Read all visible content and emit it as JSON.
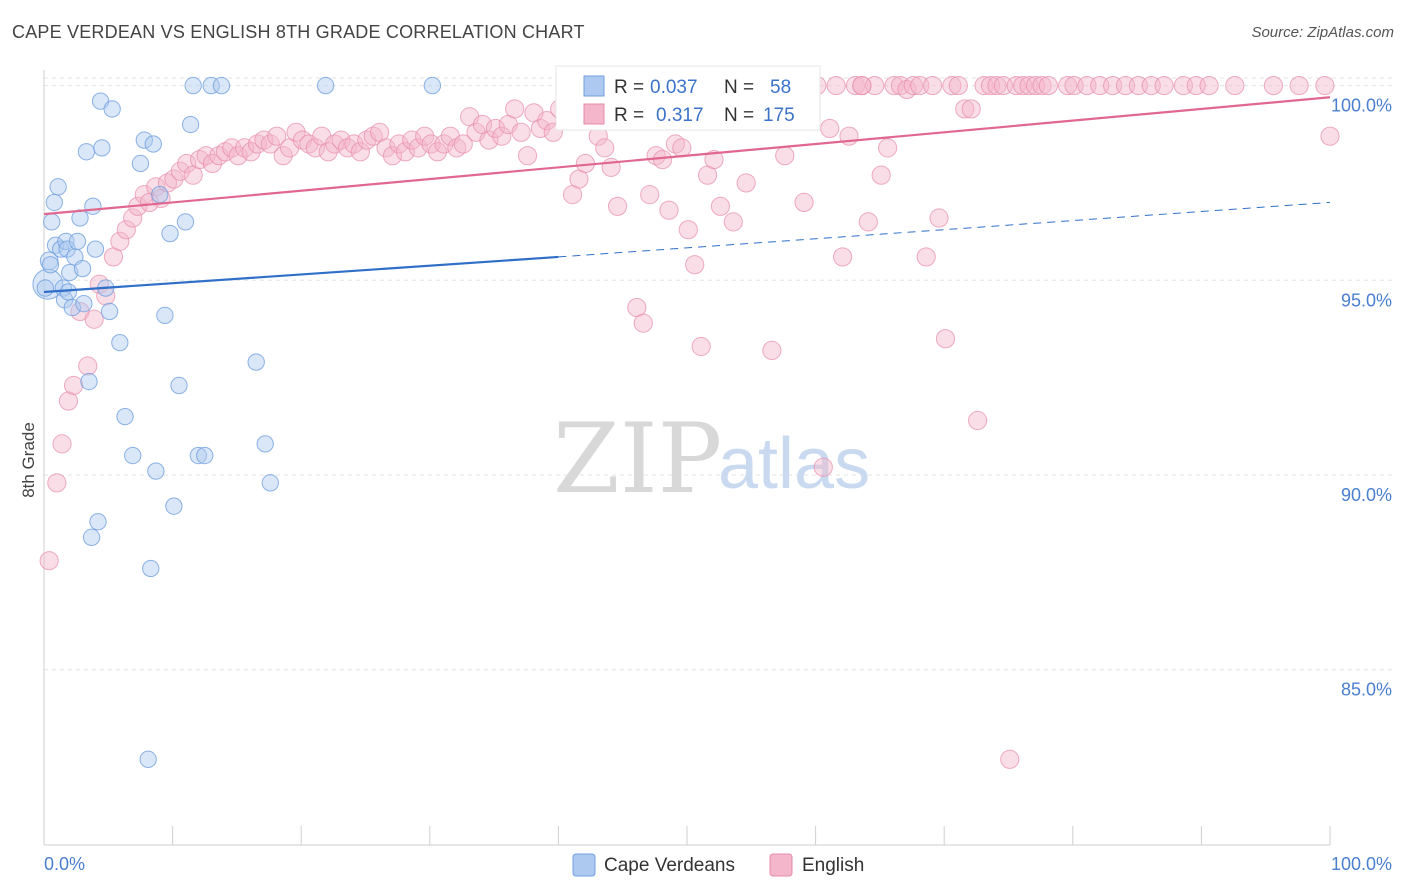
{
  "title": "CAPE VERDEAN VS ENGLISH 8TH GRADE CORRELATION CHART",
  "source": "Source: ZipAtlas.com",
  "watermark": {
    "zip": "ZIP",
    "atlas": "atlas"
  },
  "colors": {
    "blue": "#6f9fe0",
    "blue_fill": "#aec9f0",
    "blue_line": "#2f6fc8",
    "pink": "#e68aa8",
    "pink_fill": "#f4b6ca",
    "pink_line": "#e06890",
    "value": "#3b73c9",
    "grid": "#e3e3e3"
  },
  "legend_top": {
    "rows": [
      {
        "r_label": "R =",
        "r_value": "0.037",
        "n_label": "N =",
        "n_value": "58"
      },
      {
        "r_label": "R =",
        "r_value": "0.317",
        "n_label": "N =",
        "n_value": "175"
      }
    ]
  },
  "chart_data": {
    "type": "scatter",
    "title": "CAPE VERDEAN VS ENGLISH 8TH GRADE CORRELATION CHART",
    "xlabel": "",
    "ylabel": "8th Grade",
    "x_tick_labels": [
      "0.0%",
      "100.0%"
    ],
    "y_tick_labels": [
      "100.0%",
      "95.0%",
      "90.0%",
      "85.0%"
    ],
    "y_ticks": [
      100,
      95,
      90,
      85
    ],
    "xlim": [
      0,
      100
    ],
    "ylim": [
      80.5,
      100.4
    ],
    "grid": true,
    "legend": "bottom",
    "series": [
      {
        "name": "Cape Verdeans",
        "r": 0.037,
        "n": 58,
        "trend": {
          "x0": 0,
          "y0": 94.7,
          "x1": 40,
          "y1": 95.6,
          "dash_x1": 100,
          "dash_y1": 97.0
        },
        "points": [
          [
            0.3,
            94.9
          ],
          [
            0.4,
            95.5
          ],
          [
            0.6,
            96.5
          ],
          [
            0.8,
            97.0
          ],
          [
            0.9,
            95.9
          ],
          [
            1.1,
            97.4
          ],
          [
            1.3,
            95.8
          ],
          [
            1.5,
            94.8
          ],
          [
            1.6,
            94.5
          ],
          [
            1.7,
            96.0
          ],
          [
            1.8,
            95.8
          ],
          [
            1.9,
            94.7
          ],
          [
            2.0,
            95.2
          ],
          [
            2.2,
            94.3
          ],
          [
            2.4,
            95.6
          ],
          [
            2.6,
            96.0
          ],
          [
            2.8,
            96.6
          ],
          [
            3.0,
            95.3
          ],
          [
            3.1,
            94.4
          ],
          [
            3.3,
            98.3
          ],
          [
            3.5,
            92.4
          ],
          [
            3.7,
            88.4
          ],
          [
            3.8,
            96.9
          ],
          [
            4.0,
            95.8
          ],
          [
            4.2,
            88.8
          ],
          [
            4.4,
            99.6
          ],
          [
            4.5,
            98.4
          ],
          [
            4.8,
            94.8
          ],
          [
            5.1,
            94.2
          ],
          [
            5.3,
            99.4
          ],
          [
            5.9,
            93.4
          ],
          [
            6.3,
            91.5
          ],
          [
            6.9,
            90.5
          ],
          [
            7.5,
            98.0
          ],
          [
            7.8,
            98.6
          ],
          [
            8.1,
            82.7
          ],
          [
            8.3,
            87.6
          ],
          [
            8.5,
            98.5
          ],
          [
            8.7,
            90.1
          ],
          [
            9.0,
            97.2
          ],
          [
            9.4,
            94.1
          ],
          [
            9.8,
            96.2
          ],
          [
            10.1,
            89.2
          ],
          [
            10.5,
            92.3
          ],
          [
            11.0,
            96.5
          ],
          [
            11.4,
            99.0
          ],
          [
            11.6,
            100.0
          ],
          [
            12.0,
            90.5
          ],
          [
            12.5,
            90.5
          ],
          [
            13.0,
            100.0
          ],
          [
            13.8,
            100.0
          ],
          [
            16.5,
            92.9
          ],
          [
            17.2,
            90.8
          ],
          [
            17.6,
            89.8
          ],
          [
            21.9,
            100.0
          ],
          [
            30.2,
            100.0
          ],
          [
            0.1,
            94.8
          ],
          [
            0.5,
            95.4
          ]
        ],
        "sizes": [
          22,
          13,
          12,
          12,
          12,
          12,
          12,
          12,
          12,
          12,
          12,
          12,
          12,
          12,
          12,
          12,
          12,
          12,
          12,
          12,
          12,
          12,
          12,
          12,
          12,
          12,
          12,
          12,
          12,
          12,
          12,
          12,
          12,
          12,
          12,
          12,
          12,
          12,
          12,
          12,
          12,
          12,
          12,
          12,
          12,
          12,
          12,
          12,
          12,
          12,
          12,
          12,
          12,
          12,
          12,
          12,
          12,
          12
        ]
      },
      {
        "name": "English",
        "r": 0.317,
        "n": 175,
        "trend": {
          "x0": 0,
          "y0": 96.7,
          "x1": 100,
          "y1": 99.7
        },
        "points": [
          [
            0.4,
            87.8
          ],
          [
            1.0,
            89.8
          ],
          [
            1.4,
            90.8
          ],
          [
            1.9,
            91.9
          ],
          [
            2.3,
            92.3
          ],
          [
            2.8,
            94.2
          ],
          [
            3.4,
            92.8
          ],
          [
            3.9,
            94.0
          ],
          [
            4.3,
            94.9
          ],
          [
            4.8,
            94.6
          ],
          [
            5.4,
            95.6
          ],
          [
            5.9,
            96.0
          ],
          [
            6.4,
            96.3
          ],
          [
            6.9,
            96.6
          ],
          [
            7.3,
            96.9
          ],
          [
            7.8,
            97.2
          ],
          [
            8.2,
            97.0
          ],
          [
            8.7,
            97.4
          ],
          [
            9.1,
            97.1
          ],
          [
            9.6,
            97.5
          ],
          [
            10.1,
            97.6
          ],
          [
            10.6,
            97.8
          ],
          [
            11.1,
            98.0
          ],
          [
            11.6,
            97.7
          ],
          [
            12.1,
            98.1
          ],
          [
            12.6,
            98.2
          ],
          [
            13.1,
            98.0
          ],
          [
            13.6,
            98.2
          ],
          [
            14.1,
            98.3
          ],
          [
            14.6,
            98.4
          ],
          [
            15.1,
            98.2
          ],
          [
            15.6,
            98.4
          ],
          [
            16.1,
            98.3
          ],
          [
            16.6,
            98.5
          ],
          [
            17.1,
            98.6
          ],
          [
            17.6,
            98.5
          ],
          [
            18.1,
            98.7
          ],
          [
            18.6,
            98.2
          ],
          [
            19.1,
            98.4
          ],
          [
            19.6,
            98.8
          ],
          [
            20.1,
            98.6
          ],
          [
            20.6,
            98.5
          ],
          [
            21.1,
            98.4
          ],
          [
            21.6,
            98.7
          ],
          [
            22.1,
            98.3
          ],
          [
            22.6,
            98.5
          ],
          [
            23.1,
            98.6
          ],
          [
            23.6,
            98.4
          ],
          [
            24.1,
            98.5
          ],
          [
            24.6,
            98.3
          ],
          [
            25.1,
            98.6
          ],
          [
            25.6,
            98.7
          ],
          [
            26.1,
            98.8
          ],
          [
            26.6,
            98.4
          ],
          [
            27.1,
            98.2
          ],
          [
            27.6,
            98.5
          ],
          [
            28.1,
            98.3
          ],
          [
            28.6,
            98.6
          ],
          [
            29.1,
            98.4
          ],
          [
            29.6,
            98.7
          ],
          [
            30.1,
            98.5
          ],
          [
            30.6,
            98.3
          ],
          [
            31.1,
            98.5
          ],
          [
            31.6,
            98.7
          ],
          [
            32.1,
            98.4
          ],
          [
            32.6,
            98.5
          ],
          [
            33.1,
            99.2
          ],
          [
            33.6,
            98.8
          ],
          [
            34.1,
            99.0
          ],
          [
            34.6,
            98.6
          ],
          [
            35.1,
            98.9
          ],
          [
            35.6,
            98.7
          ],
          [
            36.1,
            99.0
          ],
          [
            36.6,
            99.4
          ],
          [
            37.1,
            98.8
          ],
          [
            37.6,
            98.2
          ],
          [
            38.1,
            99.3
          ],
          [
            38.6,
            98.9
          ],
          [
            39.1,
            99.1
          ],
          [
            39.6,
            98.8
          ],
          [
            40.1,
            99.4
          ],
          [
            40.6,
            99.5
          ],
          [
            41.1,
            97.2
          ],
          [
            41.6,
            97.6
          ],
          [
            42.1,
            98.0
          ],
          [
            42.6,
            99.2
          ],
          [
            43.1,
            98.7
          ],
          [
            43.6,
            98.4
          ],
          [
            44.1,
            97.9
          ],
          [
            44.6,
            96.9
          ],
          [
            45.1,
            99.6
          ],
          [
            45.6,
            99.4
          ],
          [
            46.1,
            94.3
          ],
          [
            46.6,
            93.9
          ],
          [
            47.1,
            97.2
          ],
          [
            47.6,
            98.2
          ],
          [
            48.1,
            98.1
          ],
          [
            48.6,
            96.8
          ],
          [
            49.1,
            98.5
          ],
          [
            49.6,
            98.4
          ],
          [
            50.1,
            96.3
          ],
          [
            50.6,
            95.4
          ],
          [
            51.1,
            93.3
          ],
          [
            51.6,
            97.7
          ],
          [
            52.1,
            98.1
          ],
          [
            52.6,
            96.9
          ],
          [
            53.1,
            99.6
          ],
          [
            53.6,
            96.5
          ],
          [
            54.1,
            100.0
          ],
          [
            54.6,
            97.5
          ],
          [
            55.1,
            99.6
          ],
          [
            55.6,
            100.0
          ],
          [
            56.1,
            100.0
          ],
          [
            56.6,
            93.2
          ],
          [
            57.1,
            100.0
          ],
          [
            57.6,
            98.2
          ],
          [
            58.1,
            100.0
          ],
          [
            58.6,
            100.0
          ],
          [
            59.1,
            97.0
          ],
          [
            59.6,
            100.0
          ],
          [
            60.1,
            100.0
          ],
          [
            60.6,
            90.2
          ],
          [
            61.1,
            98.9
          ],
          [
            61.6,
            100.0
          ],
          [
            62.1,
            95.6
          ],
          [
            62.6,
            98.7
          ],
          [
            63.1,
            100.0
          ],
          [
            63.6,
            100.0
          ],
          [
            64.1,
            96.5
          ],
          [
            64.6,
            100.0
          ],
          [
            65.1,
            97.7
          ],
          [
            65.6,
            98.4
          ],
          [
            66.1,
            100.0
          ],
          [
            66.6,
            100.0
          ],
          [
            67.1,
            99.9
          ],
          [
            67.6,
            100.0
          ],
          [
            68.1,
            100.0
          ],
          [
            68.6,
            95.6
          ],
          [
            69.1,
            100.0
          ],
          [
            69.6,
            96.6
          ],
          [
            70.1,
            93.5
          ],
          [
            70.6,
            100.0
          ],
          [
            71.1,
            100.0
          ],
          [
            71.6,
            99.4
          ],
          [
            72.1,
            99.4
          ],
          [
            72.6,
            91.4
          ],
          [
            73.1,
            100.0
          ],
          [
            73.6,
            100.0
          ],
          [
            74.1,
            100.0
          ],
          [
            74.6,
            100.0
          ],
          [
            75.1,
            82.7
          ],
          [
            75.6,
            100.0
          ],
          [
            76.1,
            100.0
          ],
          [
            76.6,
            100.0
          ],
          [
            77.1,
            100.0
          ],
          [
            77.6,
            100.0
          ],
          [
            78.1,
            100.0
          ],
          [
            79.6,
            100.0
          ],
          [
            80.1,
            100.0
          ],
          [
            81.1,
            100.0
          ],
          [
            82.1,
            100.0
          ],
          [
            83.1,
            100.0
          ],
          [
            84.1,
            100.0
          ],
          [
            85.1,
            100.0
          ],
          [
            86.1,
            100.0
          ],
          [
            87.1,
            100.0
          ],
          [
            88.6,
            100.0
          ],
          [
            89.6,
            100.0
          ],
          [
            90.6,
            100.0
          ],
          [
            92.6,
            100.0
          ],
          [
            95.6,
            100.0
          ],
          [
            97.6,
            100.0
          ],
          [
            99.6,
            100.0
          ],
          [
            100.0,
            98.7
          ],
          [
            63.6,
            100.0
          ]
        ],
        "sizes": [
          14
        ]
      }
    ]
  },
  "legend_bottom": {
    "items": [
      "Cape Verdeans",
      "English"
    ]
  }
}
